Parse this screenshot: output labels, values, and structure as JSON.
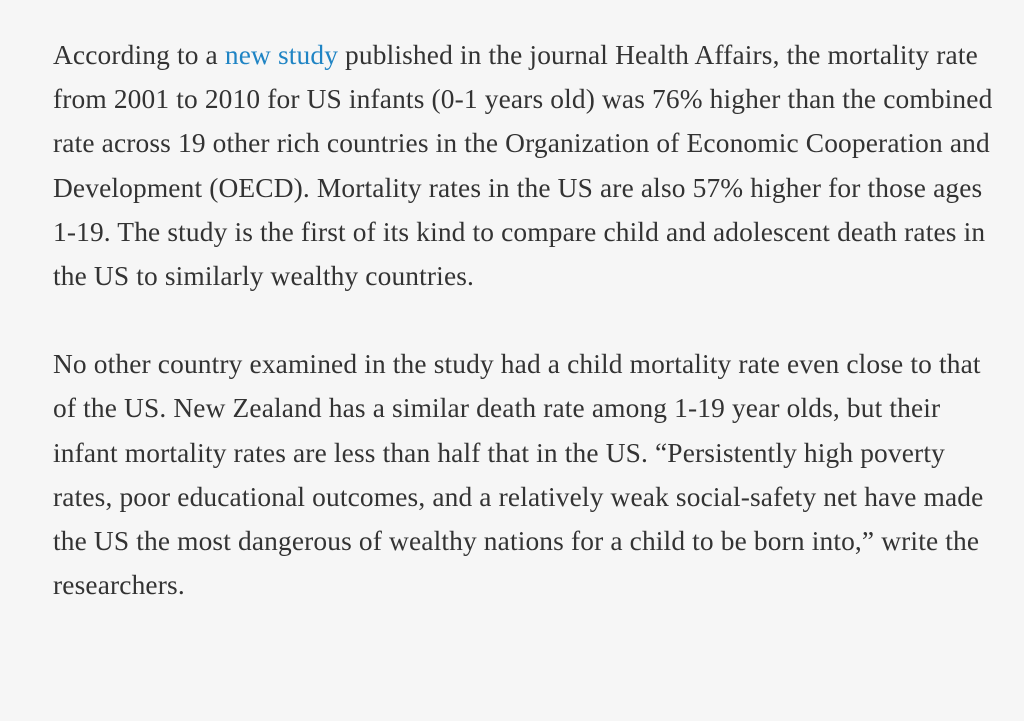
{
  "paragraphs": [
    {
      "before_link": "According to a ",
      "link_text": "new study",
      "after_link": " published in the journal Health Affairs, the mortality rate from 2001 to 2010 for US infants (0-1 years old) was 76% higher than the combined rate across 19 other rich countries in the Organization of Economic Cooperation and Development (OECD). Mortality rates in the US are also 57% higher for those ages 1-19. The study is the first of its kind to compare child and adolescent death rates in the US to similarly wealthy countries."
    },
    {
      "text": "No other country examined in the study had a child mortality rate even close to that of the US. New Zealand has a similar death rate among 1-19 year olds, but their infant mortality rates are less than half that in the US. “Persistently high poverty rates, poor educational outcomes, and a relatively weak social-safety net have made the US the most dangerous of wealthy nations for a child to be born into,” write the researchers."
    }
  ],
  "colors": {
    "background": "#f6f6f6",
    "text": "#333333",
    "link": "#1f84c4"
  }
}
